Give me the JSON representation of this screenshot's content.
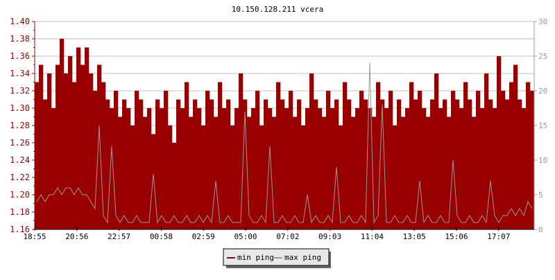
{
  "chart_data": {
    "type": "bar",
    "title": "10.150.128.211 vcera",
    "xlabel": "",
    "ylabel": "",
    "x_tick_labels": [
      "18:55",
      "20:56",
      "22:57",
      "00:58",
      "02:59",
      "05:00",
      "07:02",
      "09:03",
      "11:04",
      "13:05",
      "15:06",
      "17:07"
    ],
    "y_left": {
      "lim": [
        1.16,
        1.4
      ],
      "ticks": [
        "1.16",
        "1.18",
        "1.20",
        "1.22",
        "1.24",
        "1.26",
        "1.28",
        "1.30",
        "1.32",
        "1.34",
        "1.36",
        "1.38",
        "1.40"
      ]
    },
    "y_right": {
      "lim": [
        0,
        30
      ],
      "ticks": [
        "0",
        "5",
        "10",
        "15",
        "20",
        "25",
        "30"
      ]
    },
    "grid": true,
    "legend_position": "bottom-center",
    "series": [
      {
        "name": "min ping",
        "axis": "left",
        "color": "#990000",
        "style": "filled-bars",
        "values": [
          1.33,
          1.35,
          1.31,
          1.34,
          1.3,
          1.35,
          1.38,
          1.34,
          1.36,
          1.33,
          1.37,
          1.35,
          1.37,
          1.34,
          1.32,
          1.35,
          1.33,
          1.31,
          1.3,
          1.32,
          1.29,
          1.31,
          1.3,
          1.28,
          1.32,
          1.31,
          1.29,
          1.3,
          1.27,
          1.31,
          1.3,
          1.32,
          1.28,
          1.26,
          1.31,
          1.3,
          1.33,
          1.29,
          1.31,
          1.3,
          1.28,
          1.32,
          1.31,
          1.29,
          1.33,
          1.3,
          1.31,
          1.28,
          1.3,
          1.34,
          1.31,
          1.29,
          1.3,
          1.32,
          1.28,
          1.31,
          1.3,
          1.29,
          1.33,
          1.31,
          1.3,
          1.32,
          1.29,
          1.31,
          1.28,
          1.3,
          1.34,
          1.31,
          1.3,
          1.29,
          1.32,
          1.3,
          1.31,
          1.28,
          1.33,
          1.31,
          1.29,
          1.3,
          1.32,
          1.31,
          1.3,
          1.29,
          1.33,
          1.31,
          1.3,
          1.32,
          1.28,
          1.31,
          1.29,
          1.3,
          1.33,
          1.31,
          1.32,
          1.3,
          1.29,
          1.31,
          1.34,
          1.3,
          1.31,
          1.29,
          1.32,
          1.31,
          1.3,
          1.33,
          1.31,
          1.29,
          1.32,
          1.3,
          1.34,
          1.31,
          1.3,
          1.36,
          1.32,
          1.31,
          1.33,
          1.35,
          1.31,
          1.3,
          1.33,
          1.32
        ]
      },
      {
        "name": "max ping",
        "axis": "right",
        "color": "#999999",
        "style": "line",
        "values": [
          4,
          5,
          4,
          5,
          5,
          6,
          5,
          6,
          6,
          5,
          6,
          5,
          5,
          4,
          3,
          15,
          2,
          1,
          12,
          2,
          1,
          2,
          1,
          1,
          2,
          1,
          1,
          1,
          8,
          1,
          2,
          1,
          1,
          2,
          1,
          1,
          2,
          1,
          1,
          2,
          1,
          2,
          1,
          7,
          1,
          1,
          2,
          1,
          1,
          1,
          17,
          2,
          1,
          1,
          2,
          1,
          12,
          1,
          1,
          2,
          1,
          1,
          2,
          1,
          1,
          5,
          1,
          2,
          1,
          1,
          2,
          1,
          9,
          1,
          1,
          2,
          1,
          1,
          2,
          1,
          24,
          1,
          2,
          18,
          1,
          1,
          2,
          1,
          1,
          2,
          1,
          1,
          7,
          1,
          2,
          1,
          1,
          2,
          1,
          1,
          10,
          2,
          1,
          1,
          2,
          1,
          1,
          2,
          1,
          7,
          2,
          1,
          2,
          2,
          3,
          2,
          3,
          2,
          4,
          3
        ]
      }
    ]
  },
  "legend": [
    {
      "label": "min ping",
      "color": "#990000"
    },
    {
      "label": "max ping",
      "color": "#999999"
    }
  ]
}
